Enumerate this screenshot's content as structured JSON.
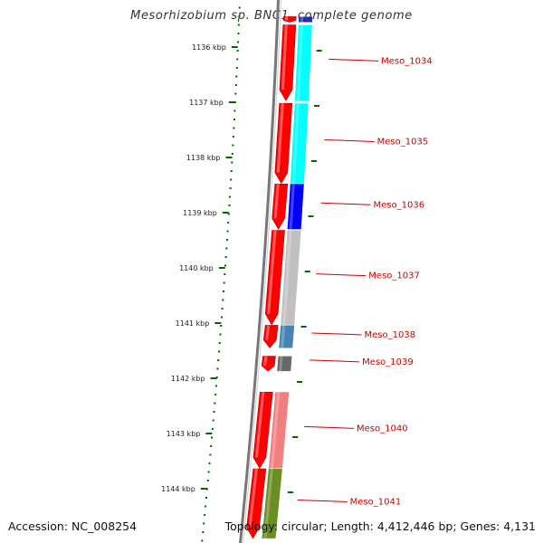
{
  "title": "Mesorhizobium sp. BNC1, complete genome",
  "footer": {
    "accession": "Accession: NC_008254",
    "stats": "Topology: circular; Length: 4,412,446 bp; Genes: 4,131"
  },
  "ruler_ticks": [
    {
      "label": "1136 kbp",
      "pos_kbp": 1136
    },
    {
      "label": "1137 kbp",
      "pos_kbp": 1137
    },
    {
      "label": "1138 kbp",
      "pos_kbp": 1138
    },
    {
      "label": "1139 kbp",
      "pos_kbp": 1139
    },
    {
      "label": "1140 kbp",
      "pos_kbp": 1140
    },
    {
      "label": "1141 kbp",
      "pos_kbp": 1141
    },
    {
      "label": "1142 kbp",
      "pos_kbp": 1142
    },
    {
      "label": "1143 kbp",
      "pos_kbp": 1143
    },
    {
      "label": "1144 kbp",
      "pos_kbp": 1144
    }
  ],
  "genes": [
    {
      "name": "",
      "start_kbp": 1135.45,
      "end_kbp": 1135.55,
      "cog_color": "#2a2aa8"
    },
    {
      "name": "Meso_1034",
      "start_kbp": 1135.6,
      "end_kbp": 1136.97,
      "cog_color": "#00ffff"
    },
    {
      "name": "Meso_1035",
      "start_kbp": 1137.02,
      "end_kbp": 1138.47,
      "cog_color": "#00ffff"
    },
    {
      "name": "Meso_1036",
      "start_kbp": 1138.48,
      "end_kbp": 1139.3,
      "cog_color": "#0000ff"
    },
    {
      "name": "Meso_1037",
      "start_kbp": 1139.32,
      "end_kbp": 1141.03,
      "cog_color": "#c0c0c0"
    },
    {
      "name": "Meso_1038",
      "start_kbp": 1141.04,
      "end_kbp": 1141.45,
      "cog_color": "#4682b4"
    },
    {
      "name": "Meso_1039",
      "start_kbp": 1141.6,
      "end_kbp": 1141.87,
      "cog_color": "#696969"
    },
    {
      "name": "Meso_1040",
      "start_kbp": 1142.25,
      "end_kbp": 1143.63,
      "cog_color": "#f08080"
    },
    {
      "name": "Meso_1041",
      "start_kbp": 1143.64,
      "end_kbp": 1144.9,
      "cog_color": "#6b8e23"
    }
  ],
  "colors": {
    "backbone": "#777777",
    "cds_strand": "#ff0000",
    "ruler": "#006600",
    "gene_label": "#cc0000",
    "gc_skew_positive": "#006600"
  }
}
